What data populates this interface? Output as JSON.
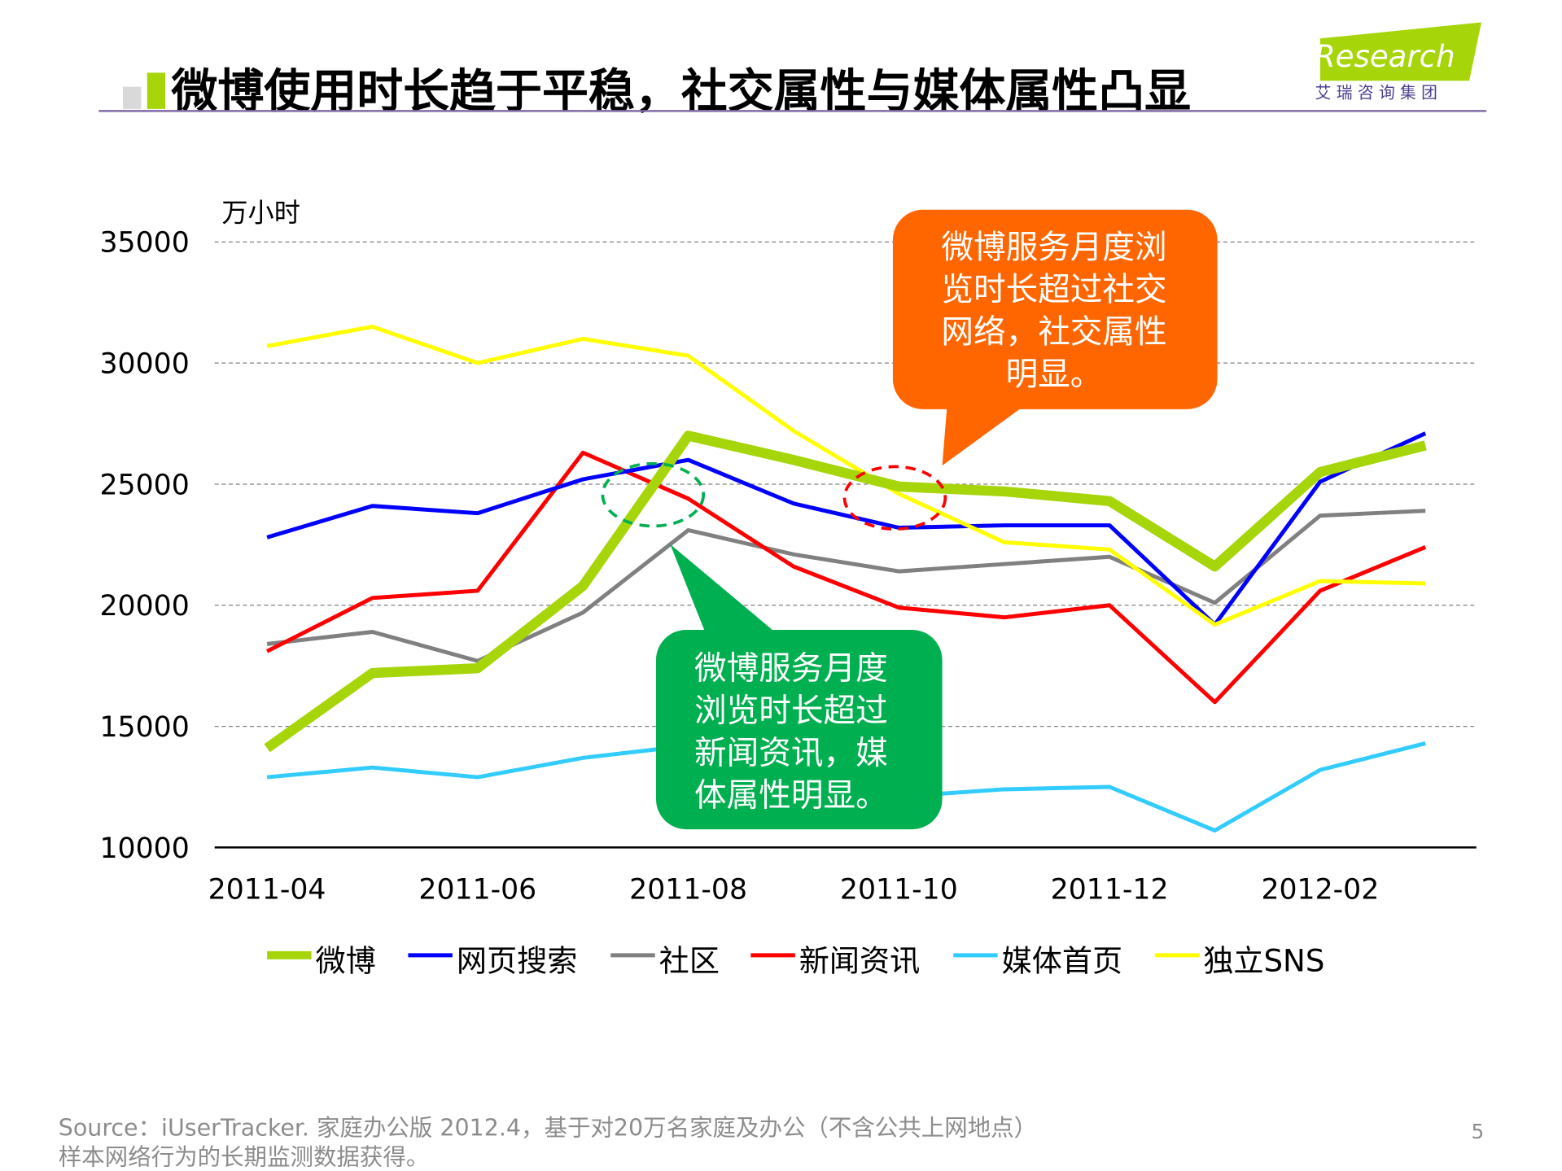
{
  "title": "微博使用时长趋于平稳，社交属性与媒体属性凸显",
  "logo": {
    "brand": "iResearch",
    "subtitle": "艾 瑞 咨 询 集 团"
  },
  "page_number": "5",
  "source": {
    "line1": "Source：iUserTracker. 家庭办公版 2012.4，基于对20万名家庭及办公（不含公共上网地点）",
    "line2": "样本网络行为的长期监测数据获得。"
  },
  "callouts": {
    "orange": {
      "lines": [
        "微博服务月度浏",
        "览时长超过社交",
        "网络，社交属性",
        "明显。"
      ],
      "color": "#ff6600"
    },
    "green": {
      "lines": [
        "微博服务月度",
        "浏览时长超过",
        "新闻资讯，媒",
        "体属性明显。"
      ],
      "color": "#00b050"
    }
  },
  "chart_data": {
    "type": "line",
    "title": "",
    "ylabel": "万小时",
    "xlabel": "",
    "ylim": [
      10000,
      35000
    ],
    "yticks": [
      10000,
      15000,
      20000,
      25000,
      30000,
      35000
    ],
    "x": [
      "2011-04",
      "2011-05",
      "2011-06",
      "2011-07",
      "2011-08",
      "2011-09",
      "2011-10",
      "2011-11",
      "2011-12",
      "2012-01",
      "2012-02",
      "2012-03"
    ],
    "xtick_labels": [
      "2011-04",
      "2011-06",
      "2011-08",
      "2011-10",
      "2011-12",
      "2012-02"
    ],
    "grid": "horizontal dashed",
    "legend": "bottom",
    "series": [
      {
        "name": "微博",
        "color": "#a6d609",
        "values": [
          14100,
          17200,
          17400,
          20800,
          27000,
          26000,
          24900,
          24700,
          24300,
          21600,
          25500,
          26600
        ]
      },
      {
        "name": "网页搜索",
        "color": "#0000ff",
        "values": [
          22800,
          24100,
          23800,
          25200,
          26000,
          24200,
          23200,
          23300,
          23300,
          19200,
          25100,
          27100
        ]
      },
      {
        "name": "社区",
        "color": "#808080",
        "values": [
          18400,
          18900,
          17700,
          19700,
          23100,
          22100,
          21400,
          21700,
          22000,
          20100,
          23700,
          23900
        ]
      },
      {
        "name": "新闻资讯",
        "color": "#ff0000",
        "values": [
          18100,
          20300,
          20600,
          26300,
          24400,
          21600,
          19900,
          19500,
          20000,
          16000,
          20600,
          22400
        ]
      },
      {
        "name": "媒体首页",
        "color": "#33ccff",
        "values": [
          12900,
          13300,
          12900,
          13700,
          14200,
          13100,
          12100,
          12400,
          12500,
          10700,
          13200,
          14300
        ]
      },
      {
        "name": "独立SNS",
        "color": "#ffff00",
        "values": [
          30700,
          31500,
          30000,
          31000,
          30300,
          27200,
          24600,
          22600,
          22300,
          19200,
          21000,
          20900
        ]
      }
    ]
  }
}
